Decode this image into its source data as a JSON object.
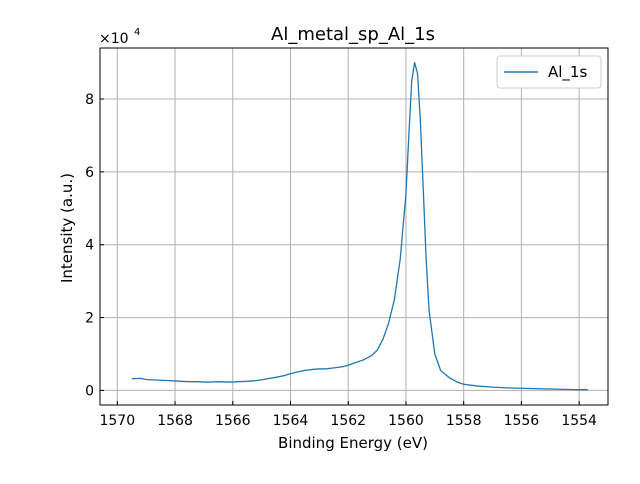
{
  "chart_data": {
    "type": "line",
    "title": "Al_metal_sp_Al_1s",
    "xlabel": "Binding Energy (eV)",
    "ylabel": "Intensity (a.u.)",
    "y_multiplier": {
      "base": "×10",
      "exponent": "4"
    },
    "xlim": [
      1570.6,
      1553.0
    ],
    "x_reversed": true,
    "ylim": [
      -4000,
      94000
    ],
    "y_tick_scale": 10000,
    "xticks": [
      1570,
      1568,
      1566,
      1564,
      1562,
      1560,
      1558,
      1556,
      1554
    ],
    "yticks": [
      0,
      20000,
      40000,
      60000,
      80000
    ],
    "ytick_labels": [
      "0",
      "2",
      "4",
      "6",
      "8"
    ],
    "grid": true,
    "legend_position": "top-right",
    "series": [
      {
        "name": "Al_1s",
        "color": "#1f77b4",
        "x": [
          1569.5,
          1569.2,
          1569.0,
          1568.8,
          1568.5,
          1568.2,
          1568.0,
          1567.8,
          1567.5,
          1567.2,
          1567.0,
          1566.8,
          1566.5,
          1566.2,
          1566.0,
          1565.8,
          1565.5,
          1565.2,
          1565.0,
          1564.8,
          1564.5,
          1564.2,
          1564.0,
          1563.8,
          1563.5,
          1563.2,
          1563.0,
          1562.8,
          1562.5,
          1562.2,
          1562.0,
          1561.8,
          1561.5,
          1561.2,
          1561.0,
          1560.8,
          1560.6,
          1560.4,
          1560.2,
          1560.0,
          1559.9,
          1559.8,
          1559.7,
          1559.6,
          1559.5,
          1559.4,
          1559.3,
          1559.2,
          1559.0,
          1558.8,
          1558.5,
          1558.2,
          1558.0,
          1557.5,
          1557.0,
          1556.5,
          1556.0,
          1555.5,
          1555.0,
          1554.5,
          1554.0,
          1553.7
        ],
        "y": [
          3200,
          3300,
          3000,
          2900,
          2800,
          2700,
          2600,
          2500,
          2400,
          2400,
          2300,
          2300,
          2400,
          2300,
          2300,
          2400,
          2500,
          2700,
          2900,
          3200,
          3600,
          4100,
          4600,
          5000,
          5500,
          5800,
          5900,
          5900,
          6200,
          6500,
          6900,
          7500,
          8300,
          9500,
          11000,
          14000,
          18500,
          25000,
          36000,
          54000,
          70000,
          85000,
          90000,
          87000,
          74000,
          55000,
          36000,
          22000,
          10000,
          5500,
          3500,
          2200,
          1700,
          1200,
          900,
          700,
          600,
          500,
          400,
          300,
          200,
          200
        ]
      }
    ]
  }
}
